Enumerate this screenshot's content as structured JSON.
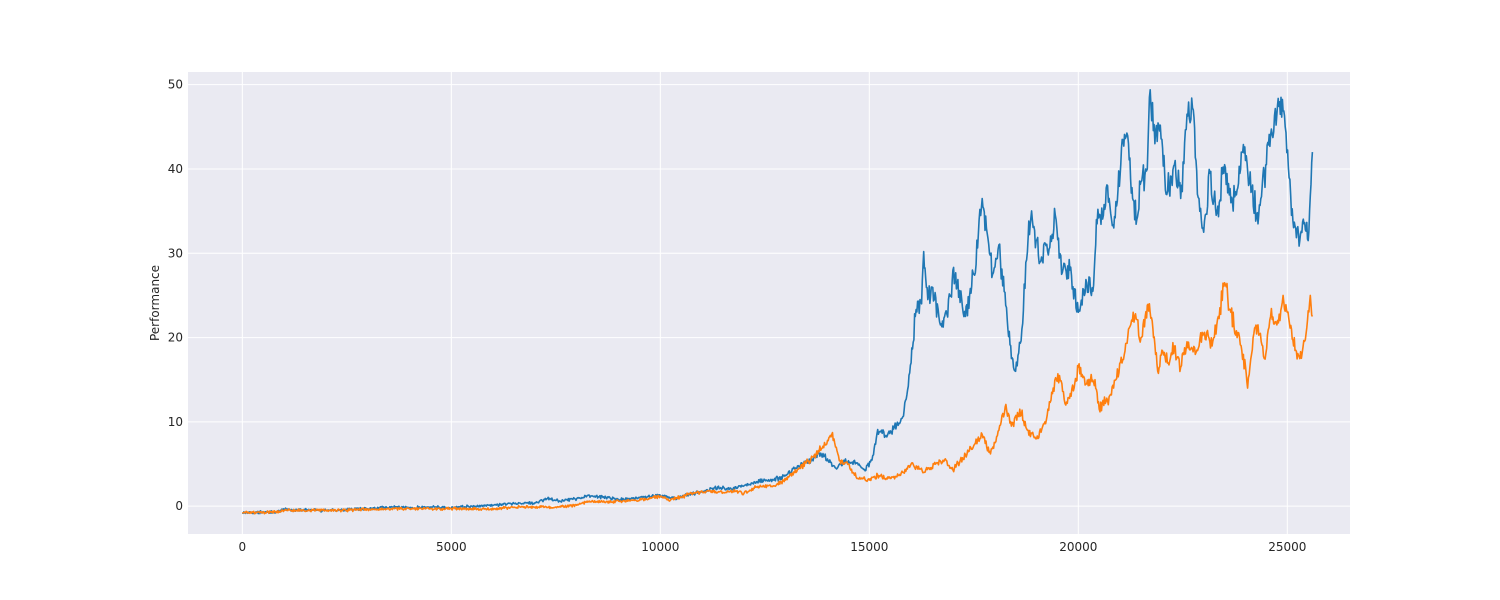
{
  "chart_data": {
    "type": "line",
    "title": "",
    "xlabel": "",
    "ylabel": "Performance",
    "xlim": [
      -1300,
      26500
    ],
    "ylim": [
      -3.3,
      51.5
    ],
    "x_ticks": [
      0,
      5000,
      10000,
      15000,
      20000,
      25000
    ],
    "y_ticks": [
      0,
      10,
      20,
      30,
      40,
      50
    ],
    "grid": true,
    "legend": "none",
    "background": "#eaeaf2",
    "series": [
      {
        "color": "#1f77b4",
        "points": [
          [
            0,
            -0.8
          ],
          [
            800,
            -0.7
          ],
          [
            1000,
            -0.4
          ],
          [
            2000,
            -0.5
          ],
          [
            3000,
            -0.3
          ],
          [
            3600,
            -0.1
          ],
          [
            4000,
            -0.2
          ],
          [
            4500,
            -0.1
          ],
          [
            5000,
            -0.2
          ],
          [
            5500,
            0.0
          ],
          [
            6000,
            0.1
          ],
          [
            6500,
            0.3
          ],
          [
            7000,
            0.4
          ],
          [
            7300,
            0.9
          ],
          [
            7600,
            0.6
          ],
          [
            8000,
            0.9
          ],
          [
            8300,
            1.3
          ],
          [
            8700,
            1.0
          ],
          [
            9000,
            0.8
          ],
          [
            9500,
            1.0
          ],
          [
            9800,
            1.2
          ],
          [
            10000,
            1.3
          ],
          [
            10300,
            0.9
          ],
          [
            10700,
            1.4
          ],
          [
            11000,
            1.7
          ],
          [
            11300,
            2.2
          ],
          [
            11700,
            2.0
          ],
          [
            12000,
            2.4
          ],
          [
            12300,
            2.9
          ],
          [
            12700,
            3.1
          ],
          [
            13000,
            3.6
          ],
          [
            13300,
            4.8
          ],
          [
            13600,
            5.3
          ],
          [
            13800,
            6.3
          ],
          [
            14000,
            5.6
          ],
          [
            14200,
            4.5
          ],
          [
            14500,
            5.4
          ],
          [
            14700,
            5.1
          ],
          [
            14900,
            4.2
          ],
          [
            15100,
            6.1
          ],
          [
            15200,
            9.1
          ],
          [
            15400,
            8.4
          ],
          [
            15600,
            9.4
          ],
          [
            15800,
            10.6
          ],
          [
            15900,
            13.2
          ],
          [
            16000,
            17.0
          ],
          [
            16100,
            22.5
          ],
          [
            16250,
            24.0
          ],
          [
            16300,
            30.2
          ],
          [
            16400,
            24.5
          ],
          [
            16500,
            26.0
          ],
          [
            16700,
            21.5
          ],
          [
            16800,
            22.5
          ],
          [
            16950,
            25.0
          ],
          [
            17000,
            28.0
          ],
          [
            17100,
            26.0
          ],
          [
            17300,
            22.5
          ],
          [
            17400,
            25.0
          ],
          [
            17500,
            27.5
          ],
          [
            17700,
            36.5
          ],
          [
            17800,
            33.0
          ],
          [
            17950,
            27.5
          ],
          [
            18100,
            31.0
          ],
          [
            18300,
            22.0
          ],
          [
            18400,
            17.5
          ],
          [
            18500,
            16.0
          ],
          [
            18650,
            21.0
          ],
          [
            18800,
            32.0
          ],
          [
            18900,
            34.0
          ],
          [
            19100,
            29.0
          ],
          [
            19300,
            30.5
          ],
          [
            19450,
            34.5
          ],
          [
            19600,
            27.5
          ],
          [
            19800,
            28.0
          ],
          [
            20000,
            23.0
          ],
          [
            20200,
            26.5
          ],
          [
            20350,
            25.5
          ],
          [
            20450,
            33.5
          ],
          [
            20600,
            34.5
          ],
          [
            20700,
            38.0
          ],
          [
            20850,
            33.0
          ],
          [
            20950,
            37.5
          ],
          [
            21050,
            43.5
          ],
          [
            21200,
            43.0
          ],
          [
            21300,
            36.5
          ],
          [
            21400,
            34.0
          ],
          [
            21500,
            38.5
          ],
          [
            21650,
            40.0
          ],
          [
            21700,
            48.5
          ],
          [
            21850,
            44.5
          ],
          [
            22000,
            43.5
          ],
          [
            22100,
            37.0
          ],
          [
            22300,
            40.5
          ],
          [
            22450,
            36.5
          ],
          [
            22600,
            46.5
          ],
          [
            22750,
            47.0
          ],
          [
            22850,
            37.0
          ],
          [
            23000,
            32.5
          ],
          [
            23150,
            39.5
          ],
          [
            23300,
            34.5
          ],
          [
            23500,
            40.5
          ],
          [
            23650,
            36.0
          ],
          [
            23800,
            37.5
          ],
          [
            23900,
            42.0
          ],
          [
            24000,
            41.0
          ],
          [
            24150,
            37.5
          ],
          [
            24300,
            33.5
          ],
          [
            24400,
            38.0
          ],
          [
            24500,
            40.5
          ],
          [
            24600,
            44.0
          ],
          [
            24750,
            46.5
          ],
          [
            24850,
            48.5
          ],
          [
            24950,
            45.0
          ],
          [
            25100,
            34.5
          ],
          [
            25200,
            33.0
          ],
          [
            25300,
            31.5
          ],
          [
            25400,
            33.5
          ],
          [
            25500,
            31.5
          ],
          [
            25600,
            42.0
          ]
        ]
      },
      {
        "color": "#ff7f0e",
        "points": [
          [
            0,
            -0.8
          ],
          [
            800,
            -0.7
          ],
          [
            1000,
            -0.5
          ],
          [
            2000,
            -0.5
          ],
          [
            3000,
            -0.4
          ],
          [
            4000,
            -0.3
          ],
          [
            4500,
            -0.3
          ],
          [
            5000,
            -0.3
          ],
          [
            5500,
            -0.3
          ],
          [
            6000,
            -0.4
          ],
          [
            6500,
            -0.1
          ],
          [
            7000,
            -0.1
          ],
          [
            7500,
            -0.1
          ],
          [
            8000,
            0.1
          ],
          [
            8300,
            0.6
          ],
          [
            8700,
            0.5
          ],
          [
            9000,
            0.6
          ],
          [
            9500,
            0.7
          ],
          [
            9800,
            1.0
          ],
          [
            10000,
            1.2
          ],
          [
            10200,
            0.7
          ],
          [
            10500,
            1.1
          ],
          [
            10800,
            1.6
          ],
          [
            11200,
            1.8
          ],
          [
            11500,
            1.6
          ],
          [
            11800,
            1.8
          ],
          [
            12000,
            1.5
          ],
          [
            12300,
            2.3
          ],
          [
            12700,
            2.4
          ],
          [
            13000,
            3.1
          ],
          [
            13300,
            4.4
          ],
          [
            13600,
            5.6
          ],
          [
            13800,
            6.5
          ],
          [
            14000,
            7.8
          ],
          [
            14100,
            8.5
          ],
          [
            14300,
            5.4
          ],
          [
            14500,
            5.0
          ],
          [
            14700,
            3.3
          ],
          [
            15000,
            3.1
          ],
          [
            15200,
            3.7
          ],
          [
            15500,
            3.3
          ],
          [
            15800,
            4.0
          ],
          [
            16000,
            5.0
          ],
          [
            16300,
            4.0
          ],
          [
            16600,
            5.1
          ],
          [
            16800,
            5.5
          ],
          [
            17000,
            4.3
          ],
          [
            17300,
            6.1
          ],
          [
            17500,
            7.2
          ],
          [
            17700,
            8.5
          ],
          [
            17900,
            6.2
          ],
          [
            18100,
            9.0
          ],
          [
            18250,
            11.8
          ],
          [
            18400,
            9.5
          ],
          [
            18600,
            11.5
          ],
          [
            18800,
            9.0
          ],
          [
            19000,
            8.0
          ],
          [
            19200,
            10.0
          ],
          [
            19400,
            14.0
          ],
          [
            19550,
            15.5
          ],
          [
            19700,
            12.0
          ],
          [
            19900,
            14.0
          ],
          [
            20000,
            16.5
          ],
          [
            20200,
            14.5
          ],
          [
            20400,
            15.0
          ],
          [
            20500,
            11.5
          ],
          [
            20700,
            12.5
          ],
          [
            20900,
            15.0
          ],
          [
            21100,
            18.0
          ],
          [
            21200,
            21.0
          ],
          [
            21350,
            22.5
          ],
          [
            21500,
            20.0
          ],
          [
            21600,
            22.5
          ],
          [
            21700,
            24.0
          ],
          [
            21800,
            20.0
          ],
          [
            21900,
            16.0
          ],
          [
            22000,
            18.5
          ],
          [
            22150,
            17.0
          ],
          [
            22300,
            19.0
          ],
          [
            22450,
            16.5
          ],
          [
            22600,
            19.5
          ],
          [
            22800,
            18.0
          ],
          [
            23000,
            20.5
          ],
          [
            23200,
            19.0
          ],
          [
            23350,
            22.5
          ],
          [
            23500,
            26.5
          ],
          [
            23650,
            23.0
          ],
          [
            23800,
            20.0
          ],
          [
            23950,
            18.0
          ],
          [
            24050,
            14.0
          ],
          [
            24200,
            20.5
          ],
          [
            24300,
            21.5
          ],
          [
            24450,
            17.5
          ],
          [
            24600,
            22.5
          ],
          [
            24750,
            21.5
          ],
          [
            24900,
            25.0
          ],
          [
            25000,
            23.0
          ],
          [
            25100,
            21.0
          ],
          [
            25200,
            18.5
          ],
          [
            25300,
            17.5
          ],
          [
            25450,
            20.5
          ],
          [
            25550,
            25.0
          ],
          [
            25600,
            22.5
          ]
        ]
      }
    ]
  }
}
